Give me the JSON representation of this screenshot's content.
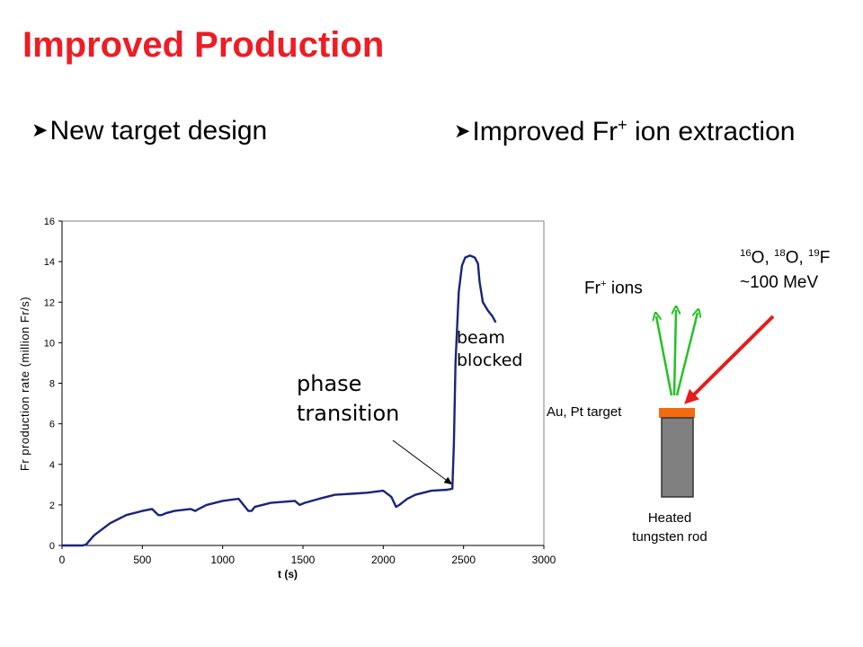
{
  "slide": {
    "title": "Improved Production",
    "bullets": [
      {
        "text": "New target design",
        "icon": "arrow-bullet-icon"
      },
      {
        "pre": "Improved Fr",
        "sup": "+",
        "post": " ion extraction",
        "icon": "arrow-bullet-icon"
      }
    ]
  },
  "diagram": {
    "fr_ions": {
      "pre": "Fr",
      "sup": "+",
      "post": " ions"
    },
    "beam_species": {
      "s1": "16",
      "t1": "O, ",
      "s2": "18",
      "t2": "O, ",
      "s3": "19",
      "t3": "F"
    },
    "beam_energy": "~100 MeV",
    "target_label": "Au, Pt target",
    "rod_label_1": "Heated",
    "rod_label_2": "tungsten rod",
    "colors": {
      "ion_arrows": "#22c222",
      "beam_arrow": "#e51c1c",
      "target": "#f26b0f",
      "rod": "#808080"
    }
  },
  "chart_data": {
    "type": "line",
    "title": "",
    "xlabel": "t (s)",
    "ylabel": "Fr production rate (million Fr/s)",
    "xlim": [
      0,
      3000
    ],
    "ylim": [
      0,
      16
    ],
    "xticks": [
      0,
      500,
      1000,
      1500,
      2000,
      2500,
      3000
    ],
    "yticks": [
      0,
      2,
      4,
      6,
      8,
      10,
      12,
      14,
      16
    ],
    "grid": false,
    "line_color": "#1a237e",
    "series": [
      {
        "x": [
          0,
          130,
          150,
          200,
          300,
          400,
          500,
          560,
          600,
          620,
          650,
          700,
          800,
          830,
          850,
          900,
          1000,
          1100,
          1130,
          1160,
          1180,
          1200,
          1300,
          1450,
          1480,
          1510,
          1600,
          1700,
          1800,
          1900,
          2000,
          2050,
          2080,
          2100,
          2150,
          2200,
          2300,
          2400,
          2430,
          2440,
          2450,
          2470,
          2490,
          2510,
          2540,
          2570,
          2590,
          2600,
          2620,
          2650,
          2680,
          2700
        ],
        "y": [
          0,
          0,
          0.05,
          0.5,
          1.1,
          1.5,
          1.7,
          1.8,
          1.5,
          1.5,
          1.6,
          1.7,
          1.8,
          1.7,
          1.8,
          2.0,
          2.2,
          2.3,
          2.0,
          1.7,
          1.7,
          1.9,
          2.1,
          2.2,
          2.0,
          2.1,
          2.3,
          2.5,
          2.55,
          2.6,
          2.7,
          2.4,
          1.9,
          2.0,
          2.3,
          2.5,
          2.7,
          2.75,
          2.8,
          5.0,
          9.0,
          12.5,
          13.8,
          14.2,
          14.3,
          14.2,
          13.9,
          13.0,
          12.0,
          11.6,
          11.3,
          11.0
        ]
      }
    ],
    "annotations": [
      {
        "text_line1": "phase",
        "text_line2": "transition",
        "arrow_to": {
          "x": 2430,
          "y": 3.0
        }
      },
      {
        "text_line1": "beam",
        "text_line2": "blocked"
      }
    ]
  }
}
